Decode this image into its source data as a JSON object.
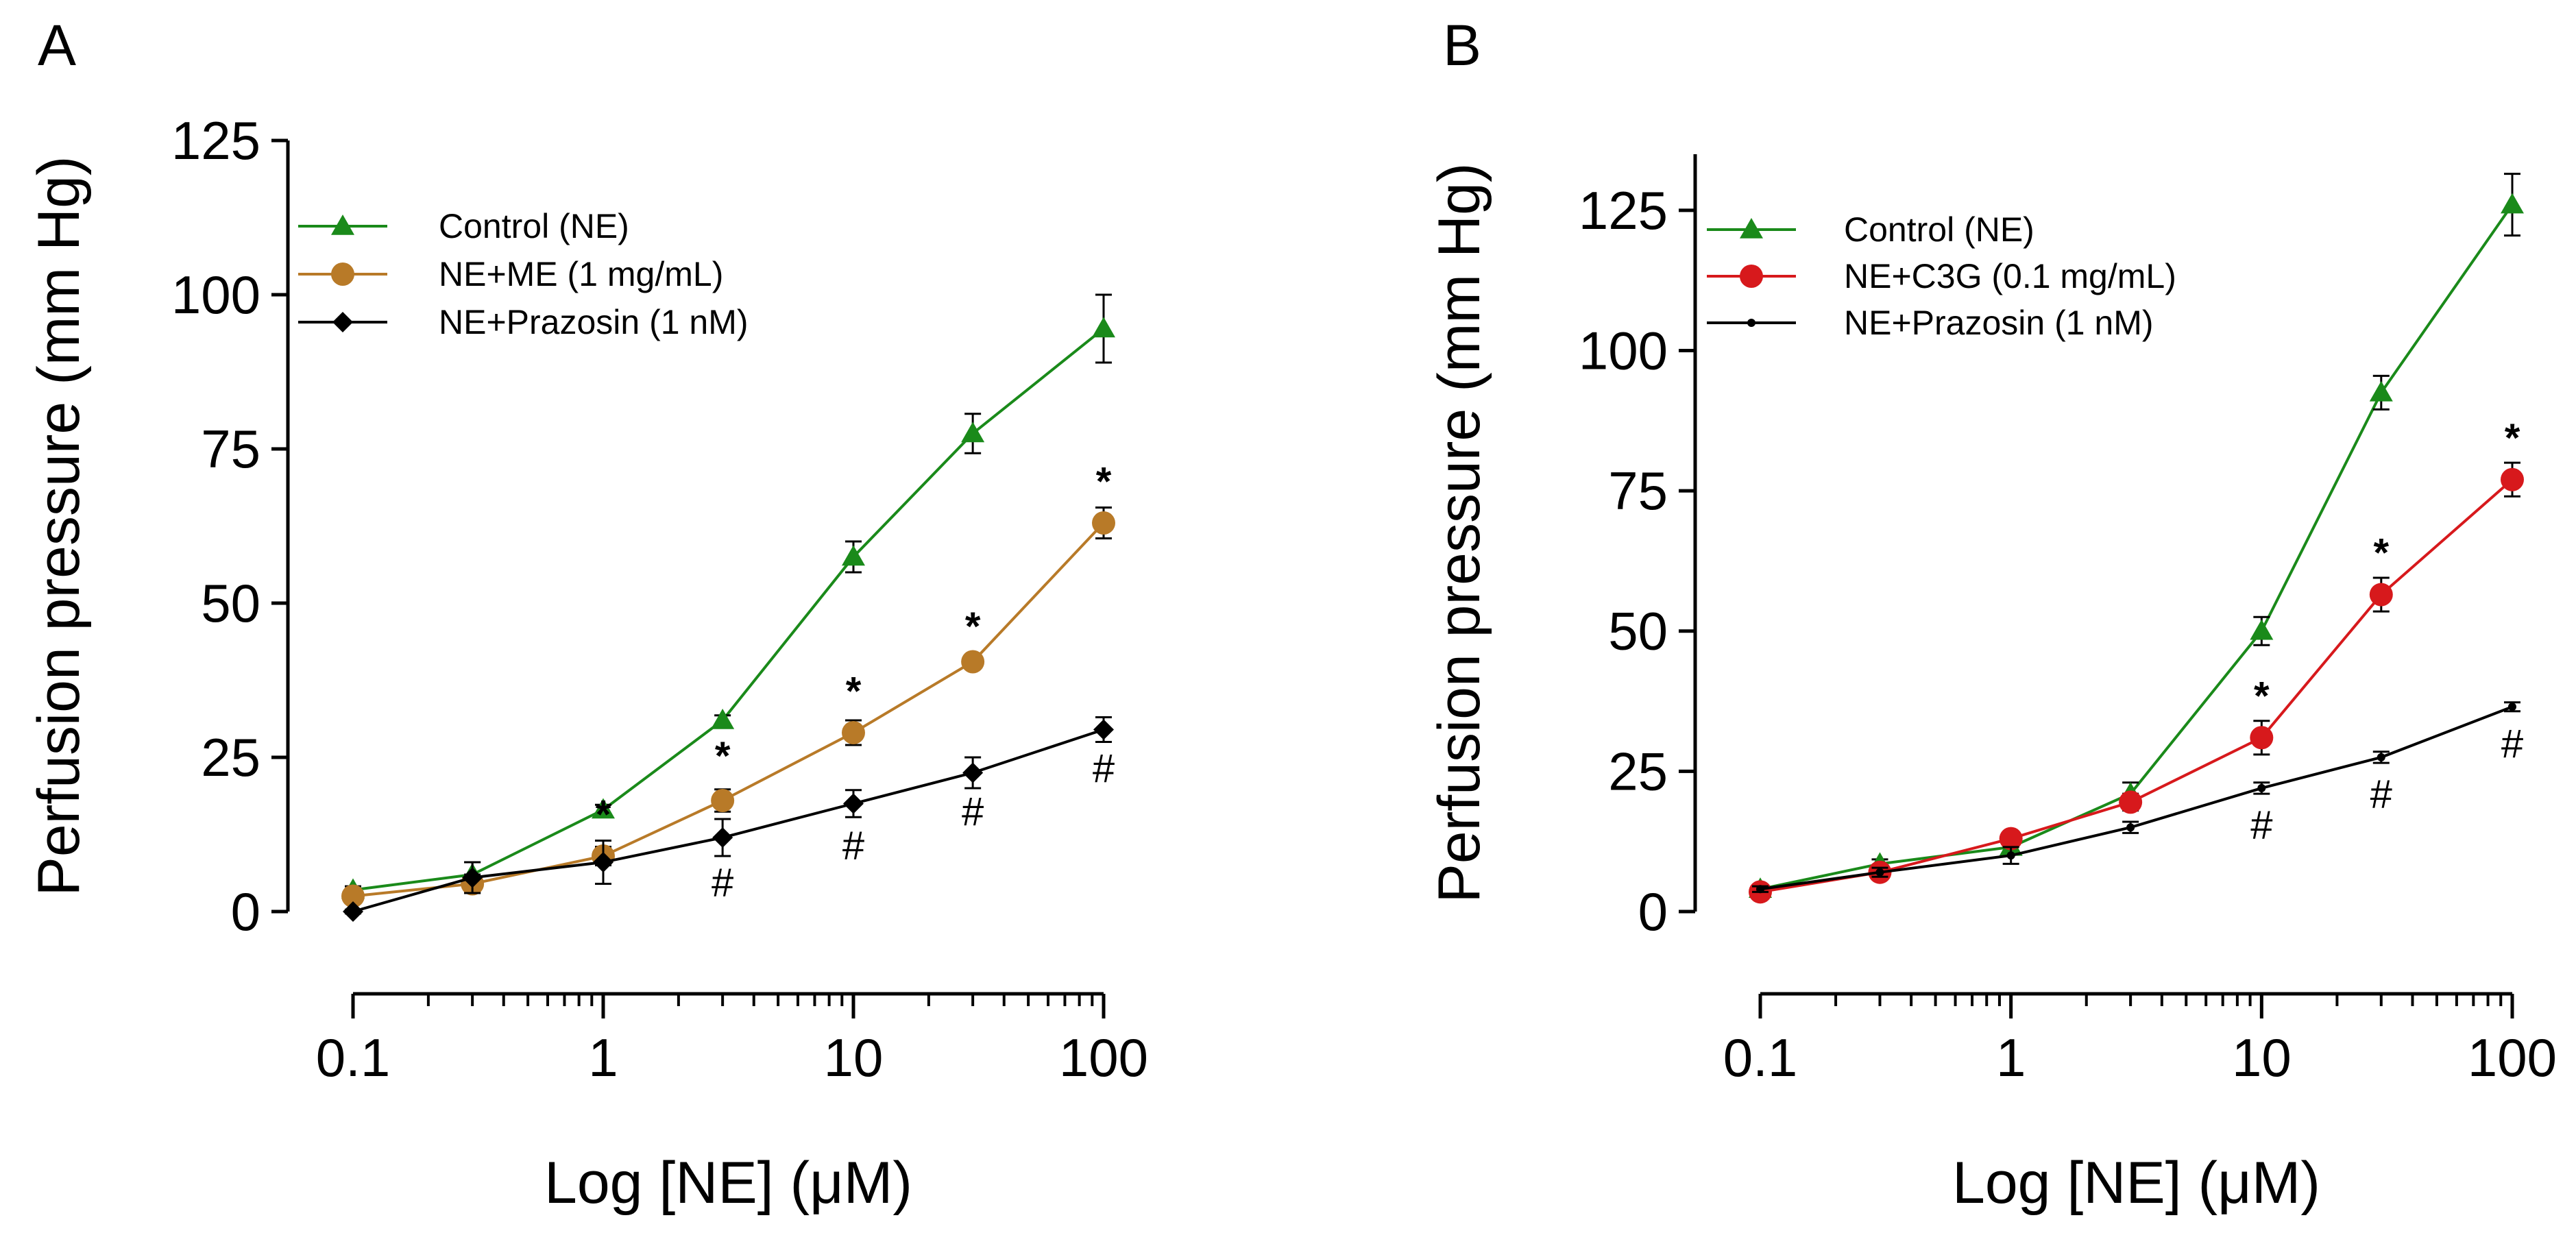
{
  "chart_data": [
    {
      "type": "line",
      "panel_label": "A",
      "xscale": "log",
      "xlabel": "Log [NE] (μM)",
      "ylabel": "Perfusion pressure (mm Hg)",
      "xlim": [
        0.1,
        100
      ],
      "ylim": [
        0,
        125
      ],
      "xticks": [
        0.1,
        1,
        10,
        100
      ],
      "xtick_labels": [
        "0.1",
        "1",
        "10",
        "100"
      ],
      "yticks": [
        0,
        25,
        50,
        75,
        100,
        125
      ],
      "ytick_labels": [
        "0",
        "25",
        "50",
        "75",
        "100",
        "125"
      ],
      "legend_position": "top-left",
      "x": [
        0.1,
        0.3,
        1,
        3,
        10,
        30,
        100
      ],
      "series": [
        {
          "name": "Control (NE)",
          "color": "#1a8a1a",
          "marker": "triangle",
          "values": [
            3.5,
            6,
            16.5,
            31,
            57.5,
            77.5,
            94.5
          ],
          "errors": [
            0.6,
            2.0,
            0.8,
            0.8,
            2.5,
            3.2,
            5.5
          ]
        },
        {
          "name": "NE+ME (1 mg/mL)",
          "color": "#b87a28",
          "marker": "circle",
          "values": [
            2.5,
            4.5,
            9,
            18,
            29,
            40.5,
            63
          ],
          "errors": [
            0.5,
            1.5,
            1.5,
            1.8,
            2.0,
            1.0,
            2.5
          ]
        },
        {
          "name": "NE+Prazosin (1 nM)",
          "color": "#000000",
          "marker": "diamond",
          "values": [
            0,
            5.5,
            8,
            12,
            17.5,
            22.5,
            29.5
          ],
          "errors": [
            0.3,
            2.5,
            3.5,
            3.0,
            2.2,
            2.5,
            2.0
          ]
        }
      ],
      "annotations": [
        {
          "text": "*",
          "x": 1,
          "y": 13.5
        },
        {
          "text": "*",
          "x": 3,
          "y": 23
        },
        {
          "text": "#",
          "x": 3,
          "y": 2.5
        },
        {
          "text": "*",
          "x": 10,
          "y": 33.5
        },
        {
          "text": "#",
          "x": 10,
          "y": 8.5
        },
        {
          "text": "*",
          "x": 30,
          "y": 44
        },
        {
          "text": "#",
          "x": 30,
          "y": 14
        },
        {
          "text": "*",
          "x": 100,
          "y": 67.5
        },
        {
          "text": "#",
          "x": 100,
          "y": 21
        }
      ]
    },
    {
      "type": "line",
      "panel_label": "B",
      "xscale": "log",
      "xlabel": "Log [NE] (μM)",
      "ylabel": "Perfusion pressure (mm Hg)",
      "xlim": [
        0.1,
        100
      ],
      "ylim": [
        0,
        135
      ],
      "xticks": [
        0.1,
        1,
        10,
        100
      ],
      "xtick_labels": [
        "0.1",
        "1",
        "10",
        "100"
      ],
      "yticks": [
        0,
        25,
        50,
        75,
        100,
        125
      ],
      "ytick_labels": [
        "0",
        "25",
        "50",
        "75",
        "100",
        "125"
      ],
      "legend_position": "top-left",
      "x": [
        0.1,
        0.3,
        1,
        3,
        10,
        30,
        100
      ],
      "series": [
        {
          "name": "Control (NE)",
          "color": "#1a8a1a",
          "marker": "triangle",
          "values": [
            4,
            8.5,
            11.5,
            21,
            50,
            92.5,
            126
          ],
          "errors": [
            0.5,
            0.8,
            1.0,
            2.0,
            2.5,
            3.0,
            5.5
          ]
        },
        {
          "name": "NE+C3G (0.1 mg/mL)",
          "color": "#d7191c",
          "marker": "circle",
          "values": [
            3.5,
            7,
            13,
            19.5,
            31,
            56.5,
            77
          ],
          "errors": [
            0.5,
            0.8,
            1.0,
            1.5,
            3.0,
            3.0,
            3.0
          ]
        },
        {
          "name": "NE+Prazosin (1 nM)",
          "color": "#000000",
          "marker": "dot",
          "values": [
            4,
            7,
            10,
            15,
            22,
            27.5,
            36.5
          ],
          "errors": [
            0.5,
            0.8,
            1.5,
            1.0,
            1.0,
            1.0,
            0.8
          ]
        }
      ],
      "annotations": [
        {
          "text": "*",
          "x": 10,
          "y": 36
        },
        {
          "text": "#",
          "x": 10,
          "y": 13
        },
        {
          "text": "*",
          "x": 30,
          "y": 61.5
        },
        {
          "text": "#",
          "x": 30,
          "y": 18.5
        },
        {
          "text": "*",
          "x": 100,
          "y": 82
        },
        {
          "text": "#",
          "x": 100,
          "y": 27.5
        }
      ]
    }
  ]
}
